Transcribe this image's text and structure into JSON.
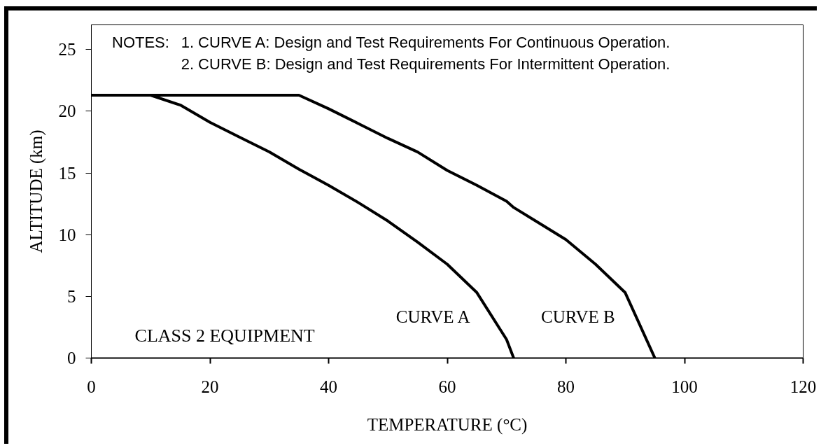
{
  "chart_data": {
    "type": "line",
    "xlabel": "TEMPERATURE (°C)",
    "ylabel": "ALTITUDE (km)",
    "xlim": [
      0,
      120
    ],
    "ylim": [
      0,
      27
    ],
    "xticks": [
      0,
      20,
      40,
      60,
      80,
      100,
      120
    ],
    "yticks": [
      0,
      5,
      10,
      15,
      20,
      25
    ],
    "grid": false,
    "annotations": [
      "NOTES:",
      "1. CURVE A: Design and Test Requirements For Continuous Operation.",
      "2. CURVE B: Design and Test Requirements For Intermittent Operation.",
      "CLASS 2 EQUIPMENT"
    ],
    "series": [
      {
        "name": "CURVE A",
        "color": "#000000",
        "x": [
          0,
          10,
          15,
          20,
          25,
          30,
          35,
          40,
          45,
          50,
          55,
          60,
          65,
          70,
          71.2
        ],
        "values": [
          21.3,
          21.3,
          20.5,
          19.1,
          17.9,
          16.7,
          15.3,
          14.0,
          12.6,
          11.1,
          9.4,
          7.6,
          5.3,
          1.5,
          0
        ]
      },
      {
        "name": "CURVE B",
        "color": "#000000",
        "x": [
          0,
          35,
          40,
          45,
          50,
          55,
          60,
          65,
          70,
          71.2,
          80,
          85,
          90,
          95
        ],
        "values": [
          21.3,
          21.3,
          20.2,
          19.0,
          17.8,
          16.7,
          15.2,
          14.0,
          12.7,
          12.2,
          9.6,
          7.6,
          5.3,
          0
        ]
      }
    ]
  }
}
